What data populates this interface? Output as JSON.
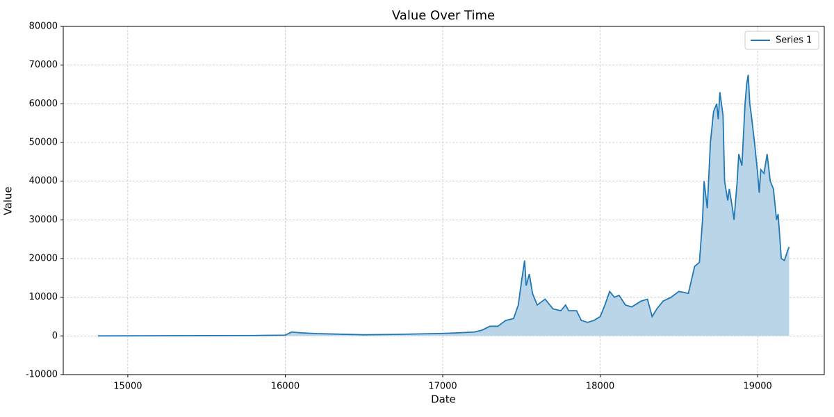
{
  "chart_data": {
    "type": "line",
    "title": "Value Over Time",
    "x_label": "Date",
    "y_label": "Value",
    "x": [
      14810,
      15800,
      16000,
      16040,
      16100,
      16200,
      16300,
      16500,
      16700,
      16950,
      17000,
      17100,
      17200,
      17250,
      17300,
      17350,
      17400,
      17450,
      17480,
      17500,
      17520,
      17530,
      17550,
      17570,
      17600,
      17650,
      17700,
      17750,
      17780,
      17800,
      17850,
      17880,
      17920,
      17960,
      18000,
      18030,
      18060,
      18090,
      18120,
      18160,
      18200,
      18260,
      18300,
      18330,
      18360,
      18400,
      18450,
      18500,
      18560,
      18600,
      18630,
      18650,
      18660,
      18680,
      18700,
      18720,
      18740,
      18750,
      18760,
      18780,
      18790,
      18810,
      18820,
      18840,
      18850,
      18870,
      18880,
      18900,
      18920,
      18930,
      18940,
      18950,
      18960,
      18980,
      19000,
      19010,
      19020,
      19040,
      19060,
      19080,
      19100,
      19120,
      19130,
      19150,
      19170,
      19190,
      19200
    ],
    "series": [
      {
        "name": "Series 1",
        "color": "#1f77b4",
        "fill": "#bbd5e8",
        "values": [
          0,
          100,
          200,
          1000,
          800,
          600,
          500,
          300,
          400,
          600,
          650,
          800,
          1000,
          1500,
          2500,
          2500,
          4000,
          4500,
          8000,
          14000,
          19500,
          13000,
          16000,
          11000,
          8000,
          9500,
          7000,
          6500,
          8000,
          6500,
          6500,
          4000,
          3500,
          4000,
          5000,
          8000,
          11500,
          10000,
          10500,
          8000,
          7500,
          9000,
          9500,
          5000,
          7000,
          9000,
          10000,
          11500,
          11000,
          18000,
          19000,
          30000,
          40000,
          33000,
          50000,
          58000,
          60000,
          56000,
          63000,
          57000,
          40000,
          35000,
          38000,
          33000,
          30000,
          40000,
          47000,
          44000,
          60000,
          65000,
          67500,
          60000,
          57000,
          50000,
          42000,
          37000,
          43000,
          42000,
          47000,
          40000,
          38000,
          30000,
          31500,
          20000,
          19500,
          22000,
          23000
        ]
      }
    ],
    "xlim": [
      14590,
      19423
    ],
    "xticks": [
      15000,
      16000,
      17000,
      18000,
      19000
    ],
    "ylim": [
      -10000,
      80000
    ],
    "yticks": [
      -10000,
      0,
      10000,
      20000,
      30000,
      40000,
      50000,
      60000,
      70000,
      80000
    ],
    "grid": true,
    "legend": "upper right"
  }
}
